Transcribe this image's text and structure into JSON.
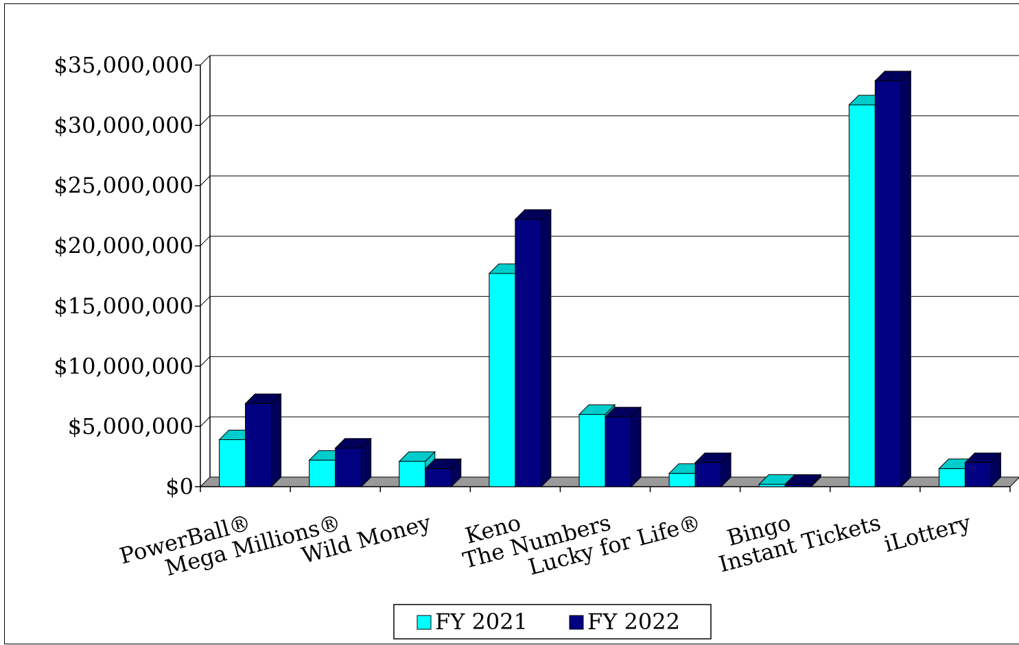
{
  "chart_data": {
    "type": "bar",
    "categories": [
      "PowerBall®",
      "Mega Millions®",
      "Wild Money",
      "Keno",
      "The Numbers",
      "Lucky for Life®",
      "Bingo",
      "Instant Tickets",
      "iLottery"
    ],
    "series": [
      {
        "name": "FY 2021",
        "values": [
          3900000,
          2200000,
          2100000,
          17700000,
          6000000,
          1100000,
          200000,
          31700000,
          1500000
        ]
      },
      {
        "name": "FY 2022",
        "values": [
          6900000,
          3200000,
          1500000,
          22200000,
          5800000,
          2000000,
          200000,
          33700000,
          2000000
        ]
      }
    ],
    "title": "",
    "xlabel": "",
    "ylabel": "",
    "ylim": [
      0,
      35000000
    ],
    "yticks": [
      0,
      5000000,
      10000000,
      15000000,
      20000000,
      25000000,
      30000000,
      35000000
    ],
    "ytick_labels": [
      "$0",
      "$5,000,000",
      "$10,000,000",
      "$15,000,000",
      "$20,000,000",
      "$25,000,000",
      "$30,000,000",
      "$35,000,000"
    ],
    "grid": true,
    "legend_position": "bottom-center",
    "colors": {
      "FY 2021": "#00ffff",
      "FY 2022": "#000080",
      "FY 2021_top": "#00cccc",
      "FY 2022_top": "#00005a",
      "floor": "#9a9a9a"
    }
  }
}
